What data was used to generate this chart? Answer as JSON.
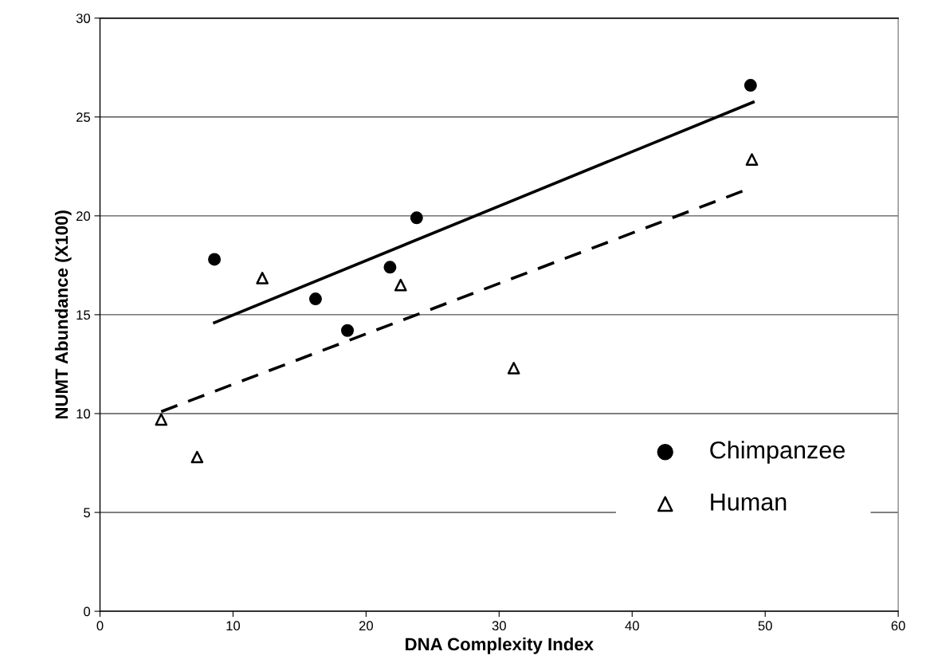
{
  "chart_data": {
    "type": "scatter",
    "xlabel": "DNA Complexity Index",
    "ylabel": "NUMT Abundance (X100)",
    "xlim": [
      0,
      60
    ],
    "xticks": [
      0,
      10,
      20,
      30,
      40,
      50,
      60
    ],
    "ylim": [
      0,
      30
    ],
    "yticks": [
      0,
      5,
      10,
      15,
      20,
      25,
      30
    ],
    "grid": "y",
    "legend": "bottom right",
    "series": [
      {
        "name": "Chimpanzee",
        "marker": "circle",
        "color": "#000000",
        "x": [
          8.6,
          16.2,
          18.6,
          21.8,
          23.8,
          48.9
        ],
        "values": [
          17.8,
          15.8,
          14.2,
          17.4,
          19.9,
          26.6
        ]
      },
      {
        "name": "Human",
        "marker": "triangle",
        "color": "#000000",
        "x": [
          4.6,
          7.3,
          12.2,
          22.6,
          31.1,
          49.0
        ],
        "values": [
          9.7,
          7.8,
          16.85,
          16.5,
          12.3,
          22.85
        ]
      },
      {
        "type": "line",
        "line_style": "solid",
        "color": "#000000",
        "x": [
          8.6,
          49.1
        ],
        "values": [
          14.6,
          25.75
        ]
      },
      {
        "type": "line",
        "line_style": "dashed",
        "color": "#000000",
        "x": [
          4.6,
          48.5
        ],
        "values": [
          10.1,
          21.3
        ]
      }
    ]
  }
}
